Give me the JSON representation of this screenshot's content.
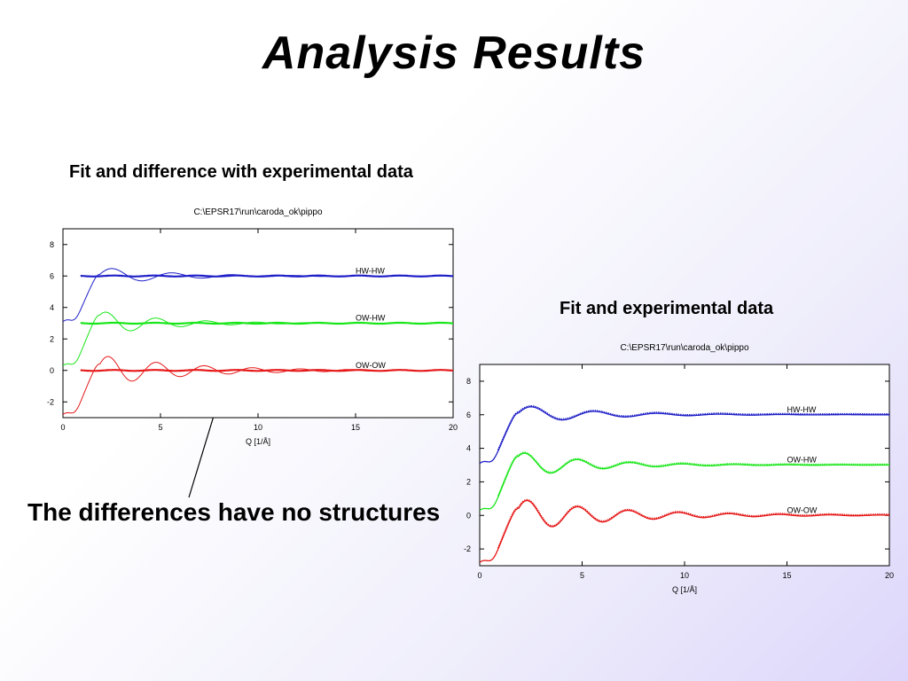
{
  "slide": {
    "title": "Analysis  Results",
    "caption_left": "Fit and difference with experimental data",
    "caption_right": "Fit and experimental data",
    "callout": "The differences have no structures"
  },
  "chart_data": [
    {
      "type": "line",
      "title": "C:\\EPSR17\\run\\caroda_ok\\pippo",
      "xlabel": "Q [1/Å]",
      "ylabel": "",
      "xlim": [
        0,
        20
      ],
      "ylim": [
        -3,
        9
      ],
      "xticks": [
        0,
        5,
        10,
        15,
        20
      ],
      "yticks": [
        -2,
        0,
        2,
        4,
        6,
        8
      ],
      "grid": false,
      "series": [
        {
          "name": "HW-HW",
          "color": "#1f1fc8",
          "offset": 6,
          "lowq_start": 3.1
        },
        {
          "name": "OW-HW",
          "color": "#19e619",
          "offset": 3,
          "lowq_start": 0.3
        },
        {
          "name": "OW-OW",
          "color": "#e61919",
          "offset": 0,
          "lowq_start": -2.8
        }
      ],
      "note_differences_flat": true
    },
    {
      "type": "line",
      "title": "C:\\EPSR17\\run\\caroda_ok\\pippo",
      "xlabel": "Q [1/Å]",
      "ylabel": "",
      "xlim": [
        0,
        20
      ],
      "ylim": [
        -3,
        9
      ],
      "xticks": [
        0,
        5,
        10,
        15,
        20
      ],
      "yticks": [
        -2,
        0,
        2,
        4,
        6,
        8
      ],
      "grid": false,
      "series": [
        {
          "name": "HW-HW",
          "color": "#1f1fc8",
          "offset": 6,
          "lowq_start": 3.1
        },
        {
          "name": "OW-HW",
          "color": "#19e619",
          "offset": 3,
          "lowq_start": 0.3
        },
        {
          "name": "OW-OW",
          "color": "#e61919",
          "offset": 0,
          "lowq_start": -2.8
        }
      ]
    }
  ]
}
